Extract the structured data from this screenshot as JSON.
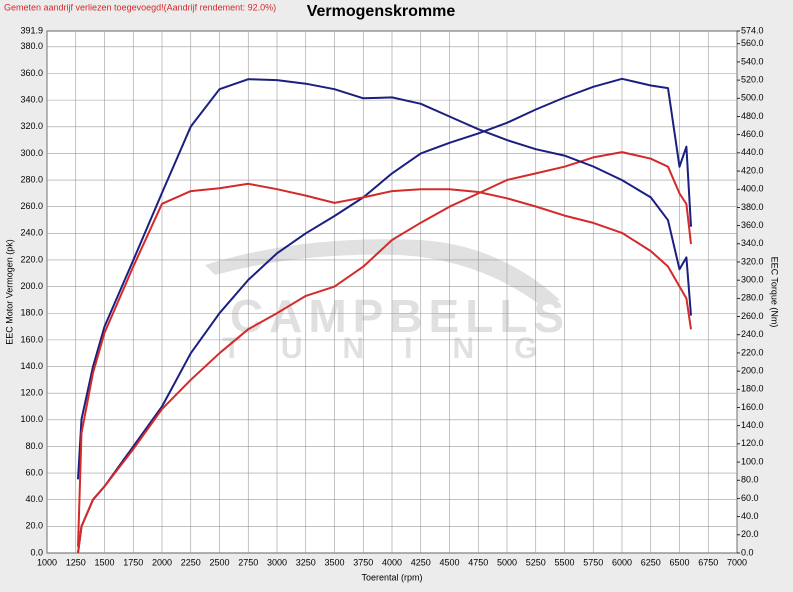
{
  "chart_data": {
    "type": "line",
    "title": "Vermogenskromme",
    "subtitle": "Gemeten aandrijf verliezen toegevoegd!(Aandrijf rendement: 92.0%)",
    "x_label": "Toerental (rpm)",
    "y_label": "EEC Motor Vermogen (pk)",
    "y2_label": "EEC Torque (Nm)",
    "watermark": [
      "CAMPBELLS",
      "TUNING"
    ],
    "grid": true,
    "xlim": [
      1000,
      7000
    ],
    "xticks": [
      1000,
      1250,
      1500,
      1750,
      2000,
      2250,
      2500,
      2750,
      3000,
      3250,
      3500,
      3750,
      4000,
      4250,
      4500,
      4750,
      5000,
      5250,
      5500,
      5750,
      6000,
      6250,
      6500,
      6750,
      7000
    ],
    "ylim": [
      0,
      391.9
    ],
    "yticks": [
      {
        "value": 0,
        "label": "0.0"
      },
      {
        "value": 20,
        "label": "20.0"
      },
      {
        "value": 40,
        "label": "40.0"
      },
      {
        "value": 60,
        "label": "60.0"
      },
      {
        "value": 80,
        "label": "80.0"
      },
      {
        "value": 100,
        "label": "100.0"
      },
      {
        "value": 120,
        "label": "120.0"
      },
      {
        "value": 140,
        "label": "140.0"
      },
      {
        "value": 160,
        "label": "160.0"
      },
      {
        "value": 180,
        "label": "180.0"
      },
      {
        "value": 200,
        "label": "200.0"
      },
      {
        "value": 220,
        "label": "220.0"
      },
      {
        "value": 240,
        "label": "240.0"
      },
      {
        "value": 260,
        "label": "260.0"
      },
      {
        "value": 280,
        "label": "280.0"
      },
      {
        "value": 300,
        "label": "300.0"
      },
      {
        "value": 320,
        "label": "320.0"
      },
      {
        "value": 340,
        "label": "340.0"
      },
      {
        "value": 360,
        "label": "360.0"
      },
      {
        "value": 380,
        "label": "380.0"
      },
      391.9
    ],
    "y2lim": [
      0,
      574
    ],
    "y2ticks": [
      {
        "value": 0,
        "label": "0.0"
      },
      {
        "value": 20,
        "label": "20.0"
      },
      {
        "value": 40,
        "label": "40.0"
      },
      {
        "value": 60,
        "label": "60.0"
      },
      {
        "value": 80,
        "label": "80.0"
      },
      {
        "value": 100,
        "label": "100.0"
      },
      {
        "value": 120,
        "label": "120.0"
      },
      {
        "value": 140,
        "label": "140.0"
      },
      {
        "value": 160,
        "label": "160.0"
      },
      {
        "value": 180,
        "label": "180.0"
      },
      {
        "value": 200,
        "label": "200.0"
      },
      {
        "value": 220,
        "label": "220.0"
      },
      {
        "value": 240,
        "label": "240.0"
      },
      {
        "value": 260,
        "label": "260.0"
      },
      {
        "value": 280,
        "label": "280.0"
      },
      {
        "value": 300,
        "label": "300.0"
      },
      {
        "value": 320,
        "label": "320.0"
      },
      {
        "value": 340,
        "label": "340.0"
      },
      {
        "value": 360,
        "label": "360.0"
      },
      {
        "value": 380,
        "label": "380.0"
      },
      {
        "value": 400,
        "label": "400.0"
      },
      {
        "value": 420,
        "label": "420.0"
      },
      {
        "value": 440,
        "label": "440.0"
      },
      {
        "value": 460,
        "label": "460.0"
      },
      {
        "value": 480,
        "label": "480.0"
      },
      {
        "value": 500,
        "label": "500.0"
      },
      {
        "value": 520,
        "label": "520.0"
      },
      {
        "value": 540,
        "label": "540.0"
      },
      {
        "value": 560,
        "label": "560.0"
      },
      {
        "value": 574,
        "label": "574.0"
      }
    ],
    "x": [
      1270,
      1300,
      1400,
      1500,
      1750,
      2000,
      2250,
      2500,
      2750,
      3000,
      3250,
      3500,
      3750,
      4000,
      4250,
      4500,
      4750,
      5000,
      5250,
      5500,
      5750,
      6000,
      6250,
      6400,
      6500,
      6560,
      6600
    ],
    "series": [
      {
        "color": "#1a1f80",
        "values": [
          0,
          20,
          40,
          50,
          80,
          110,
          150,
          180,
          205,
          225,
          240,
          253,
          267,
          285,
          300,
          308,
          315,
          323,
          333,
          342,
          350,
          356,
          351,
          349,
          290,
          305,
          245
        ]
      },
      {
        "color": "#d42a2a",
        "values": [
          0,
          20,
          40,
          50,
          78,
          108,
          130,
          150,
          168,
          180,
          193,
          200,
          215,
          235,
          248,
          260,
          270,
          280,
          285,
          290,
          297,
          301,
          296,
          290,
          270,
          262,
          232
        ]
      },
      {
        "color": "#1a1f80",
        "axis": "y2",
        "values": [
          81,
          147,
          205,
          249,
          322,
          396,
          469,
          510,
          521,
          520,
          516,
          510,
          500,
          501,
          494,
          480,
          466,
          454,
          444,
          437,
          425,
          410,
          391,
          366,
          312,
          325,
          261
        ]
      },
      {
        "color": "#d42a2a",
        "axis": "y2",
        "values": [
          7,
          132,
          198,
          242,
          315,
          384,
          398,
          401,
          406,
          400,
          393,
          385,
          391,
          398,
          400,
          400,
          397,
          390,
          381,
          371,
          363,
          352,
          332,
          315,
          293,
          280,
          246
        ]
      }
    ]
  }
}
